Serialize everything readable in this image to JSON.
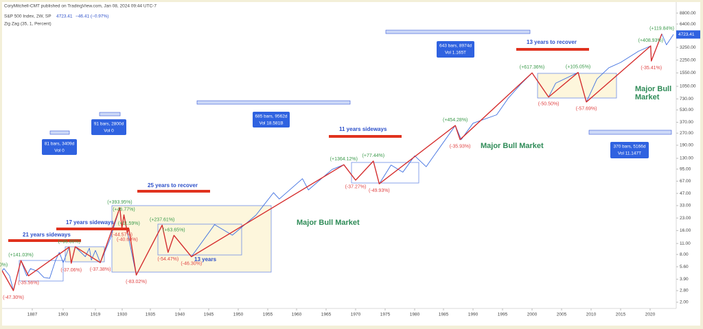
{
  "header": {
    "published": "CoryMitchell-CMT published on TradingView.com, Jan 08, 2024 09:44 UTC-7",
    "symbol": "S&P 500 Index, 2W, SP",
    "change": "−46.41 (−0.97%)",
    "indicator": "Zig Zag (35, 1, Percent)"
  },
  "chart_data": {
    "type": "line",
    "log_scale": true,
    "grid": false,
    "last_price": 4723.41,
    "xlim": [
      1871,
      2024
    ],
    "xticks": [
      1887,
      1903,
      1919,
      1930,
      1935,
      1940,
      1945,
      1950,
      1955,
      1960,
      1965,
      1970,
      1975,
      1980,
      1985,
      1990,
      1995,
      2000,
      2005,
      2010,
      2015,
      2020
    ],
    "ylim": [
      1.67,
      9730
    ],
    "yticks": [
      {
        "value": 8800,
        "label": "8800.00"
      },
      {
        "value": 6400,
        "label": "6400.00"
      },
      {
        "value": 3250,
        "label": "3250.00"
      },
      {
        "value": 2250,
        "label": "2250.00"
      },
      {
        "value": 1550,
        "label": "1550.00"
      },
      {
        "value": 1050,
        "label": "1050.00"
      },
      {
        "value": 730,
        "label": "730.00"
      },
      {
        "value": 530,
        "label": "530.00"
      },
      {
        "value": 370,
        "label": "370.00"
      },
      {
        "value": 270,
        "label": "270.00"
      },
      {
        "value": 190,
        "label": "190.00"
      },
      {
        "value": 130,
        "label": "130.00"
      },
      {
        "value": 95,
        "label": "95.00"
      },
      {
        "value": 67,
        "label": "67.00"
      },
      {
        "value": 47,
        "label": "47.00"
      },
      {
        "value": 33,
        "label": "33.00"
      },
      {
        "value": 23,
        "label": "23.00"
      },
      {
        "value": 16,
        "label": "16.00"
      },
      {
        "value": 11,
        "label": "11.00"
      },
      {
        "value": 8,
        "label": "8.00"
      },
      {
        "value": 5.6,
        "label": "5.60"
      },
      {
        "value": 3.9,
        "label": "3.90"
      },
      {
        "value": 2.8,
        "label": "2.80"
      },
      {
        "value": 2,
        "label": "2.00"
      }
    ],
    "series": [
      {
        "color": "#3d6ee0",
        "x": [
          1871,
          1872,
          1875,
          1877,
          1881,
          1884,
          1886,
          1890,
          1893,
          1896,
          1899,
          1901,
          1903,
          1906,
          1907,
          1909,
          1914,
          1916,
          1917,
          1919,
          1921,
          1925,
          1929,
          1929.9,
          1930.3,
          1932.5,
          1937,
          1938,
          1939,
          1942,
          1946,
          1949,
          1953,
          1956,
          1957,
          1961,
          1962,
          1966,
          1968,
          1970,
          1973,
          1974,
          1976,
          1978,
          1980,
          1982,
          1987,
          1988,
          1990,
          1994,
          1996,
          1998,
          2000,
          2002.8,
          2004,
          2007.8,
          2009.2,
          2011,
          2013,
          2015,
          2018,
          2020.1,
          2020.2,
          2022,
          2022.8,
          2024
        ],
        "values": [
          5.0,
          5.3,
          4.3,
          2.8,
          6.7,
          4.3,
          5.3,
          4.9,
          4.1,
          4.0,
          6.7,
          8.5,
          6.3,
          9.9,
          6.2,
          10.0,
          7.5,
          9.6,
          6.8,
          9.0,
          6.3,
          12.5,
          31.0,
          17.2,
          25.2,
          4.4,
          18.7,
          8.5,
          13.9,
          7.5,
          19,
          14,
          25,
          48,
          40,
          72,
          52,
          94,
          108,
          69,
          120,
          62,
          107,
          87,
          140,
          102,
          337,
          224,
          360,
          460,
          750,
          1100,
          1550,
          770,
          1150,
          1570,
          667,
          1300,
          1800,
          2100,
          2900,
          3390,
          2190,
          4800,
          3500,
          4723.41
        ]
      },
      {
        "color": "#d62f2f",
        "label_colors": {
          "peak": "#3a9a4a",
          "trough": "#e04444"
        },
        "x": [
          1871,
          1877,
          1881,
          1885,
          1906,
          1907,
          1909,
          1921,
          1929,
          1929.9,
          1930.3,
          1930.9,
          1931.2,
          1932.5,
          1937,
          1938,
          1939,
          1942,
          1968,
          1970,
          1973,
          1974,
          1987,
          1987.8,
          2000,
          2002.8,
          2007.8,
          2009.2,
          2020.1,
          2020.2,
          2022
        ],
        "values": [
          5.0,
          2.8,
          6.7,
          4.3,
          9.9,
          6.2,
          10.0,
          6.3,
          31.0,
          17.2,
          25.2,
          15.0,
          16.8,
          4.4,
          18.7,
          8.5,
          13.9,
          7.5,
          108,
          69,
          120,
          62,
          337,
          224,
          1550,
          770,
          1570,
          667,
          3390,
          2190,
          4800
        ],
        "labels": [
          "00%)",
          "(-47.30%)",
          "(+141.03%)",
          "(-35.56%)",
          "(+96.86%)",
          "(-37.06%)",
          null,
          "(-37.38%)",
          "(+393.95%)",
          "(-44.57%)",
          "(+46.77%)",
          "(-40.60%)",
          "(+11.59%)",
          "(-83.02%)",
          "(+237.61%)",
          "(-54.47%)",
          "(+63.65%)",
          "(-46.30%)",
          "(+1364.12%)",
          "(-37.27%)",
          "(+77.44%)",
          "(-49.93%)",
          "(+454.28%)",
          "(-35.93%)",
          "(+617.36%)",
          "(-50.50%)",
          "(+105.05%)",
          "(-57.69%)",
          "(+408.93%)",
          "(-35.41%)",
          "(+119.84%)"
        ]
      }
    ],
    "annotations": [
      "21 years sideways",
      "17 years sideways",
      "25 years to recover",
      "11 years sideways",
      "13 years to recover",
      "13 years",
      "Major Bull Market",
      "Major Bull Market",
      "Major Bull",
      "Market"
    ],
    "measures": [
      {
        "range": "81 bars, 3409d",
        "volume": "Vol 0"
      },
      {
        "range": "91 bars, 2800d",
        "volume": "Vol 0"
      },
      {
        "range": "685 bars, 9562d",
        "volume": "Vol 18.581B"
      },
      {
        "range": "643 bars, 8974d",
        "volume": "Vol 1.165T"
      },
      {
        "range": "370 bars, 5166d",
        "volume": "Vol 11.147T"
      }
    ]
  }
}
